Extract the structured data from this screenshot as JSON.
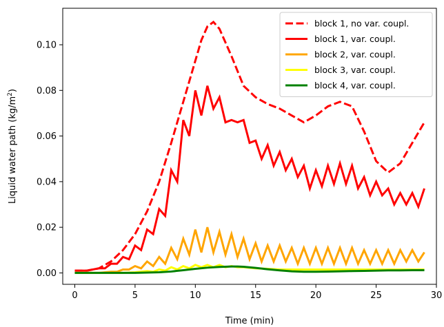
{
  "chart_data": {
    "type": "line",
    "title": "",
    "xlabel": "Time (min)",
    "ylabel": "Liquid water path (kg/m²)",
    "ylabel_main": "Liquid water path (kg/m",
    "ylabel_sup": "2",
    "ylabel_close": ")",
    "xlim": [
      -1,
      30
    ],
    "ylim": [
      -0.005,
      0.116
    ],
    "xticks": [
      0,
      5,
      10,
      15,
      20,
      25,
      30
    ],
    "xtick_labels": [
      "0",
      "5",
      "10",
      "15",
      "20",
      "25",
      "30"
    ],
    "yticks": [
      0.0,
      0.02,
      0.04,
      0.06,
      0.08,
      0.1
    ],
    "ytick_labels": [
      "0.00",
      "0.02",
      "0.04",
      "0.06",
      "0.08",
      "0.10"
    ],
    "grid": false,
    "legend_position": "top-right",
    "series": [
      {
        "name": "block 1, no var. coupl.",
        "color": "#ff0000",
        "dash": "dashed",
        "x": [
          0,
          1,
          2,
          3,
          4,
          5,
          6,
          7,
          8,
          9,
          10,
          10.5,
          11,
          11.5,
          12,
          13,
          14,
          15,
          16,
          17,
          18,
          19,
          20,
          21,
          22,
          23,
          24,
          25,
          26,
          27,
          28,
          29
        ],
        "y": [
          0.001,
          0.001,
          0.002,
          0.005,
          0.01,
          0.017,
          0.027,
          0.04,
          0.057,
          0.075,
          0.093,
          0.102,
          0.108,
          0.11,
          0.107,
          0.095,
          0.082,
          0.077,
          0.074,
          0.072,
          0.069,
          0.066,
          0.069,
          0.073,
          0.075,
          0.073,
          0.062,
          0.049,
          0.044,
          0.048,
          0.057,
          0.066
        ]
      },
      {
        "name": "block 1, var. coupl.",
        "color": "#ff0000",
        "dash": "solid",
        "x": [
          0,
          1,
          1.5,
          2,
          2.5,
          3,
          3.5,
          4,
          4.5,
          5,
          5.5,
          6,
          6.5,
          7,
          7.5,
          8,
          8.5,
          9,
          9.5,
          10,
          10.5,
          11,
          11.5,
          12,
          12.5,
          13,
          13.5,
          14,
          14.5,
          15,
          15.5,
          16,
          16.5,
          17,
          17.5,
          18,
          18.5,
          19,
          19.5,
          20,
          20.5,
          21,
          21.5,
          22,
          22.5,
          23,
          23.5,
          24,
          24.5,
          25,
          25.5,
          26,
          26.5,
          27,
          27.5,
          28,
          28.5,
          29
        ],
        "y": [
          0.001,
          0.001,
          0.0015,
          0.002,
          0.002,
          0.004,
          0.004,
          0.007,
          0.006,
          0.012,
          0.01,
          0.019,
          0.017,
          0.028,
          0.025,
          0.045,
          0.04,
          0.067,
          0.06,
          0.08,
          0.069,
          0.082,
          0.072,
          0.077,
          0.066,
          0.067,
          0.066,
          0.067,
          0.057,
          0.058,
          0.05,
          0.056,
          0.047,
          0.053,
          0.045,
          0.05,
          0.042,
          0.047,
          0.037,
          0.045,
          0.038,
          0.047,
          0.039,
          0.048,
          0.039,
          0.047,
          0.037,
          0.042,
          0.034,
          0.04,
          0.034,
          0.037,
          0.03,
          0.035,
          0.03,
          0.035,
          0.029,
          0.037
        ]
      },
      {
        "name": "block 2, var. coupl.",
        "color": "#ffa500",
        "dash": "solid",
        "x": [
          0,
          2,
          3,
          3.5,
          4,
          4.5,
          5,
          5.5,
          6,
          6.5,
          7,
          7.5,
          8,
          8.5,
          9,
          9.5,
          10,
          10.5,
          11,
          11.5,
          12,
          12.5,
          13,
          13.5,
          14,
          14.5,
          15,
          15.5,
          16,
          16.5,
          17,
          17.5,
          18,
          18.5,
          19,
          19.5,
          20,
          20.5,
          21,
          21.5,
          22,
          22.5,
          23,
          23.5,
          24,
          24.5,
          25,
          25.5,
          26,
          26.5,
          27,
          27.5,
          28,
          28.5,
          29
        ],
        "y": [
          0.0,
          0.0,
          0.0005,
          0.0005,
          0.0015,
          0.0015,
          0.003,
          0.002,
          0.005,
          0.003,
          0.007,
          0.004,
          0.011,
          0.006,
          0.015,
          0.008,
          0.019,
          0.009,
          0.02,
          0.009,
          0.018,
          0.008,
          0.017,
          0.007,
          0.015,
          0.006,
          0.013,
          0.005,
          0.012,
          0.005,
          0.012,
          0.005,
          0.011,
          0.004,
          0.011,
          0.004,
          0.011,
          0.004,
          0.011,
          0.004,
          0.011,
          0.004,
          0.011,
          0.004,
          0.01,
          0.004,
          0.01,
          0.004,
          0.01,
          0.004,
          0.01,
          0.005,
          0.01,
          0.005,
          0.009
        ]
      },
      {
        "name": "block 3, var. coupl.",
        "color": "#ffff00",
        "dash": "solid",
        "x": [
          0,
          4,
          5,
          6,
          6.5,
          7,
          7.5,
          8,
          8.5,
          9,
          9.5,
          10,
          10.5,
          11,
          11.5,
          12,
          12.5,
          13,
          13.5,
          14,
          15,
          16,
          17,
          18,
          19,
          20,
          21,
          22,
          23,
          24,
          25,
          26,
          27,
          28,
          29
        ],
        "y": [
          0.0,
          0.0,
          0.0003,
          0.0008,
          0.0005,
          0.0015,
          0.001,
          0.0025,
          0.0015,
          0.003,
          0.002,
          0.0035,
          0.0025,
          0.0035,
          0.0025,
          0.0035,
          0.0025,
          0.003,
          0.0025,
          0.0025,
          0.002,
          0.0018,
          0.0015,
          0.0015,
          0.0015,
          0.0015,
          0.0015,
          0.0015,
          0.0015,
          0.0015,
          0.0015,
          0.0015,
          0.0015,
          0.0015,
          0.0015
        ]
      },
      {
        "name": "block 4, var. coupl.",
        "color": "#008000",
        "dash": "solid",
        "x": [
          0,
          3,
          5,
          7,
          8,
          9,
          10,
          11,
          12,
          13,
          13.5,
          14,
          15,
          16,
          17,
          18,
          19,
          20,
          21,
          22,
          23,
          24,
          25,
          26,
          27,
          28,
          29
        ],
        "y": [
          0.0,
          0.0,
          0.0,
          0.0003,
          0.0006,
          0.0012,
          0.0018,
          0.0023,
          0.0026,
          0.0028,
          0.0028,
          0.0027,
          0.0022,
          0.0016,
          0.0011,
          0.0007,
          0.0005,
          0.0005,
          0.0006,
          0.0007,
          0.0008,
          0.0009,
          0.001,
          0.0011,
          0.0011,
          0.0012,
          0.0012
        ]
      }
    ]
  }
}
